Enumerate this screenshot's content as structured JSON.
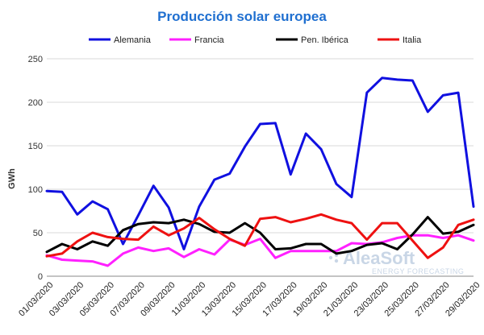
{
  "chart_data": {
    "type": "line",
    "title": "Producción solar europea",
    "ylabel": "GWh",
    "xlabel": "",
    "ylim": [
      0,
      250
    ],
    "yticks": [
      0,
      50,
      100,
      150,
      200,
      250
    ],
    "grid": true,
    "legend_position": "top",
    "x": [
      "01/03/2020",
      "02/03/2020",
      "03/03/2020",
      "04/03/2020",
      "05/03/2020",
      "06/03/2020",
      "07/03/2020",
      "08/03/2020",
      "09/03/2020",
      "10/03/2020",
      "11/03/2020",
      "12/03/2020",
      "13/03/2020",
      "14/03/2020",
      "15/03/2020",
      "16/03/2020",
      "17/03/2020",
      "18/03/2020",
      "19/03/2020",
      "20/03/2020",
      "21/03/2020",
      "22/03/2020",
      "23/03/2020",
      "24/03/2020",
      "25/03/2020",
      "26/03/2020",
      "27/03/2020",
      "28/03/2020",
      "29/03/2020"
    ],
    "xtick_labels": [
      "01/03/2020",
      "03/03/2020",
      "05/03/2020",
      "07/03/2020",
      "09/03/2020",
      "11/03/2020",
      "13/03/2020",
      "15/03/2020",
      "17/03/2020",
      "19/03/2020",
      "21/03/2020",
      "23/03/2020",
      "25/03/2020",
      "27/03/2020",
      "29/03/2020"
    ],
    "series": [
      {
        "name": "Alemania",
        "color": "#1010e0",
        "values": [
          98,
          97,
          71,
          86,
          77,
          37,
          70,
          104,
          79,
          31,
          80,
          111,
          118,
          149,
          175,
          176,
          117,
          164,
          146,
          106,
          91,
          211,
          228,
          226,
          225,
          189,
          208,
          211,
          80
        ]
      },
      {
        "name": "Francia",
        "color": "#ff20ff",
        "values": [
          24,
          19,
          18,
          17,
          12,
          26,
          33,
          29,
          32,
          22,
          31,
          25,
          42,
          36,
          43,
          21,
          29,
          29,
          29,
          29,
          38,
          37,
          39,
          44,
          47,
          47,
          44,
          47,
          41
        ]
      },
      {
        "name": "Pen. Ibérica",
        "color": "#000000",
        "values": [
          28,
          37,
          31,
          40,
          35,
          53,
          60,
          62,
          61,
          65,
          60,
          51,
          50,
          61,
          50,
          31,
          32,
          37,
          37,
          26,
          29,
          36,
          38,
          31,
          48,
          68,
          49,
          51,
          59
        ]
      },
      {
        "name": "Italia",
        "color": "#ee1111",
        "values": [
          23,
          26,
          40,
          50,
          45,
          43,
          42,
          57,
          47,
          55,
          67,
          54,
          43,
          35,
          66,
          68,
          62,
          66,
          71,
          65,
          61,
          42,
          61,
          61,
          41,
          21,
          33,
          59,
          65
        ]
      }
    ]
  },
  "watermark": {
    "brand": "AleaSoft",
    "tagline": "ENERGY FORECASTING"
  }
}
